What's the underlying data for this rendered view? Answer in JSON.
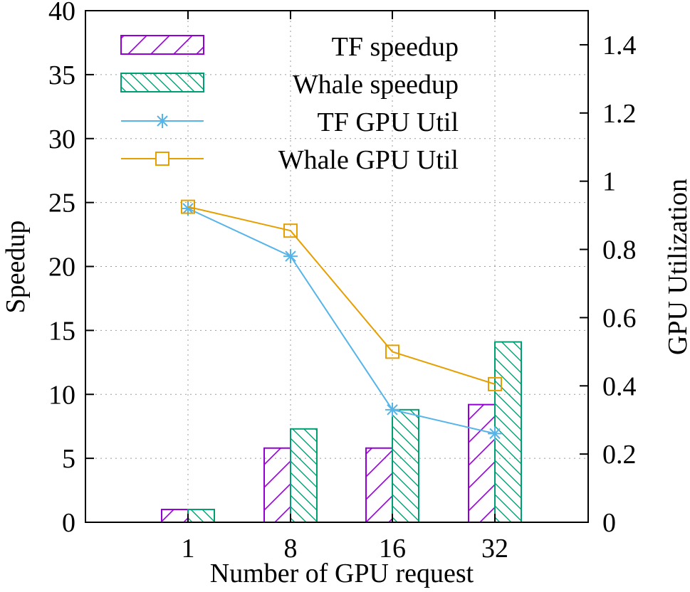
{
  "chart_data": {
    "type": "bar",
    "xlabel": "Number of GPU request",
    "ylabel": "Speedup",
    "y2label": "GPU Utilization",
    "categories": [
      "1",
      "8",
      "16",
      "32"
    ],
    "ylim": [
      0,
      40
    ],
    "yticks": [
      0,
      5,
      10,
      15,
      20,
      25,
      30,
      35,
      40
    ],
    "y2lim": [
      0,
      1.5
    ],
    "y2ticks": [
      0,
      0.2,
      0.4,
      0.6,
      0.8,
      1,
      1.2,
      1.4
    ],
    "grid": true,
    "legend_position": "top-right",
    "series": [
      {
        "name": "TF speedup",
        "kind": "bar",
        "axis": "left",
        "color": "#9400d3",
        "values": [
          1,
          5.8,
          5.8,
          9.2
        ]
      },
      {
        "name": "Whale speedup",
        "kind": "bar",
        "axis": "left",
        "color": "#009e73",
        "values": [
          1,
          7.3,
          8.8,
          14.1
        ]
      },
      {
        "name": "TF GPU Util",
        "kind": "line",
        "axis": "right",
        "marker": "asterisk",
        "color": "#56b4e9",
        "values": [
          0.92,
          0.78,
          0.33,
          0.26
        ]
      },
      {
        "name": "Whale GPU Util",
        "kind": "line",
        "axis": "right",
        "marker": "square",
        "color": "#e69f00",
        "values": [
          0.925,
          0.855,
          0.5,
          0.405
        ]
      }
    ]
  }
}
